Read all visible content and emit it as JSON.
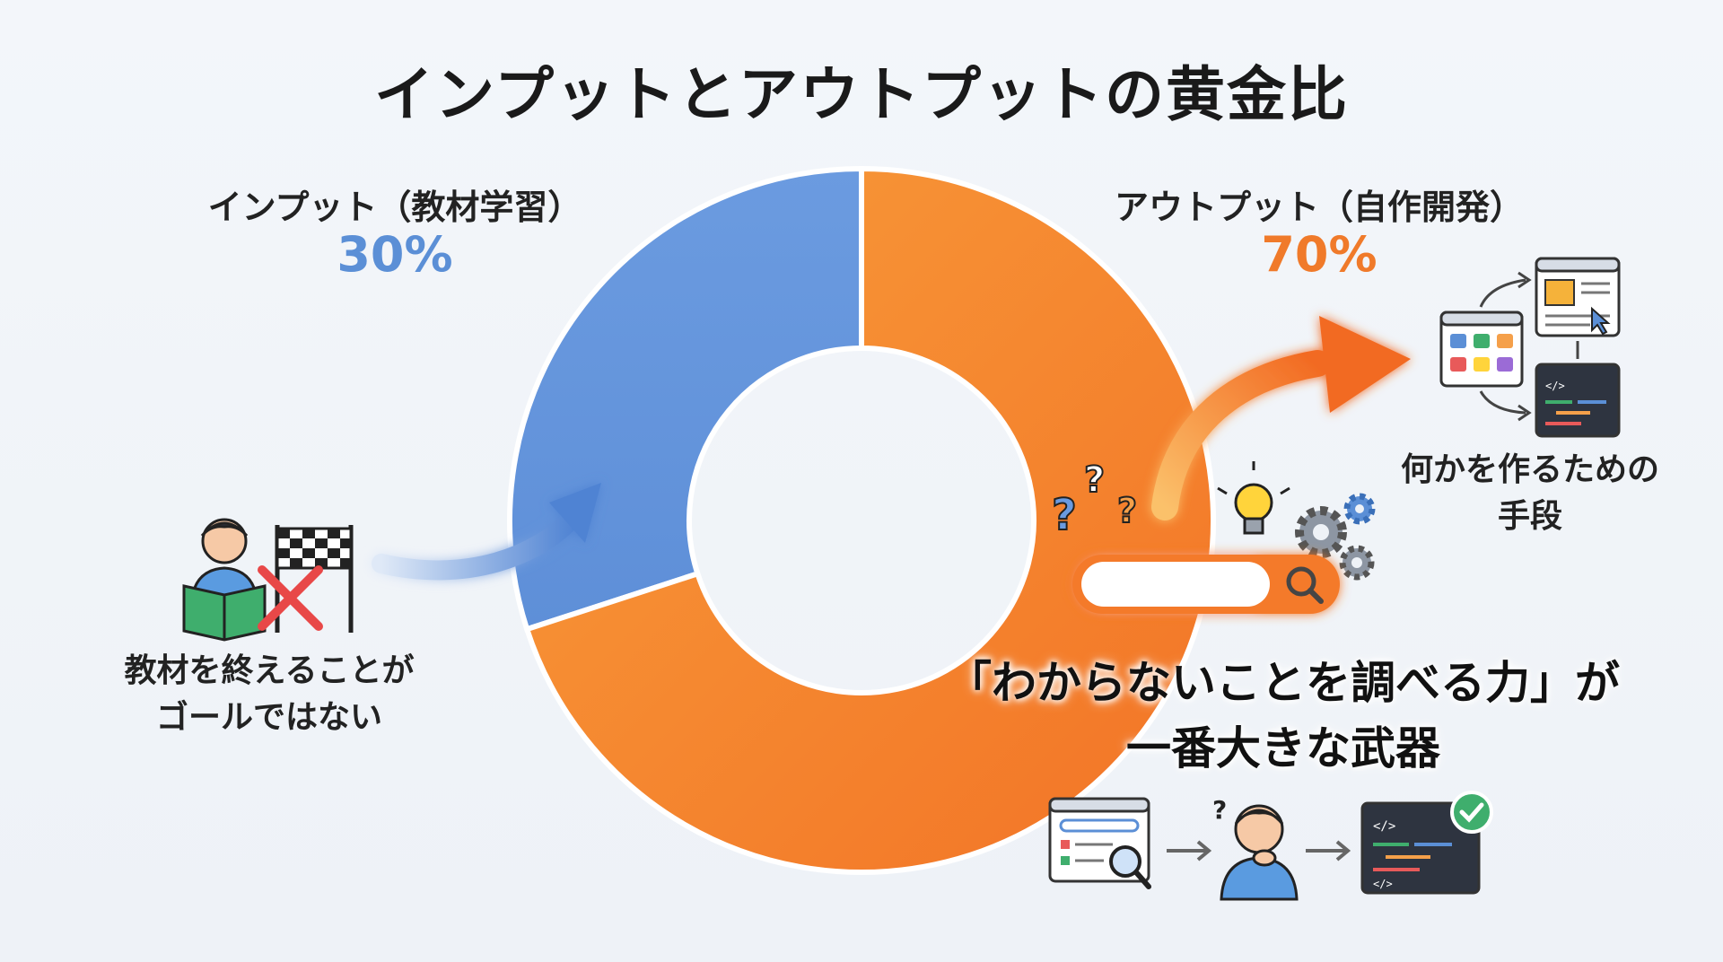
{
  "title": "インプットとアウトプットの黄金比",
  "chart_data": {
    "type": "pie",
    "title": "インプットとアウトプットの黄金比",
    "slices": [
      {
        "label": "インプット（教材学習）",
        "value": 30,
        "value_label": "30%",
        "color": "#6b9be0"
      },
      {
        "label": "アウトプット（自作開発）",
        "value": 70,
        "value_label": "70%",
        "color": "#f58a2e"
      }
    ],
    "style": "donut"
  },
  "left_caption": {
    "line1": "教材を終えることが",
    "line2": "ゴールではない"
  },
  "right_caption": {
    "line1": "何かを作るための",
    "line2": "手段"
  },
  "bottom_caption": {
    "line1": "「わからないことを調べる力」が",
    "line2": "一番大きな武器"
  },
  "colors": {
    "input": "#5b8fd6",
    "output": "#f07a2a",
    "background": "#f1f4f8"
  },
  "icons": [
    "reading-person-icon",
    "checkered-flag-icon",
    "red-x-icon",
    "curved-arrow-icon",
    "question-marks-icon",
    "lightbulb-icon",
    "gears-icon",
    "search-bar-icon",
    "app-grid-window-icon",
    "web-page-window-icon",
    "code-window-icon",
    "search-document-icon",
    "thinking-person-icon",
    "code-check-window-icon"
  ]
}
